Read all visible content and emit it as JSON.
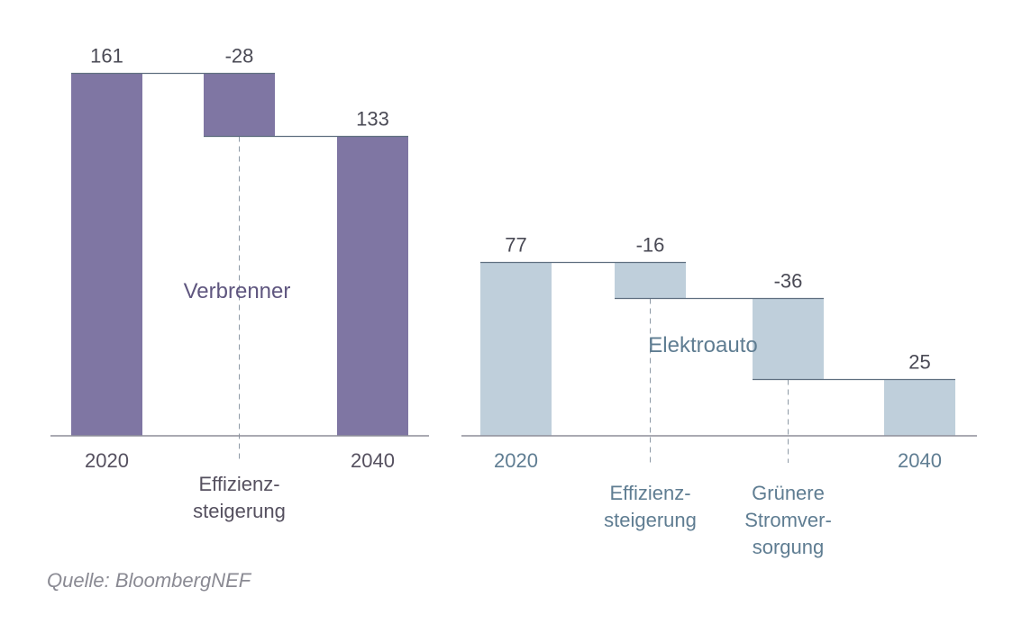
{
  "chart_data": [
    {
      "type": "bar",
      "subtype": "waterfall",
      "title": "Verbrenner",
      "categories": [
        "2020",
        "Effizienz-\nsteigerung",
        "2040"
      ],
      "values": [
        161,
        -28,
        133
      ],
      "value_labels": [
        "161",
        "-28",
        "133"
      ],
      "bar_kinds": [
        "total",
        "delta",
        "total"
      ],
      "color": "#7f76a3",
      "text_color": "#5f567f"
    },
    {
      "type": "bar",
      "subtype": "waterfall",
      "title": "Elektroauto",
      "categories": [
        "2020",
        "Effizienz-\nsteigerung",
        "Grünere\nStromver-\nsorgung",
        "2040"
      ],
      "values": [
        77,
        -16,
        -36,
        25
      ],
      "value_labels": [
        "77",
        "-16",
        "-36",
        "25"
      ],
      "bar_kinds": [
        "total",
        "delta",
        "delta",
        "total"
      ],
      "color": "#bfcfdb",
      "text_color": "#5f7d92"
    }
  ],
  "source": "Quelle: BloombergNEF",
  "colors": {
    "axis": "#8e8e99",
    "connector": "#5f6f80",
    "value_text": "#4a4a55",
    "dash": "#8e9aa6"
  }
}
